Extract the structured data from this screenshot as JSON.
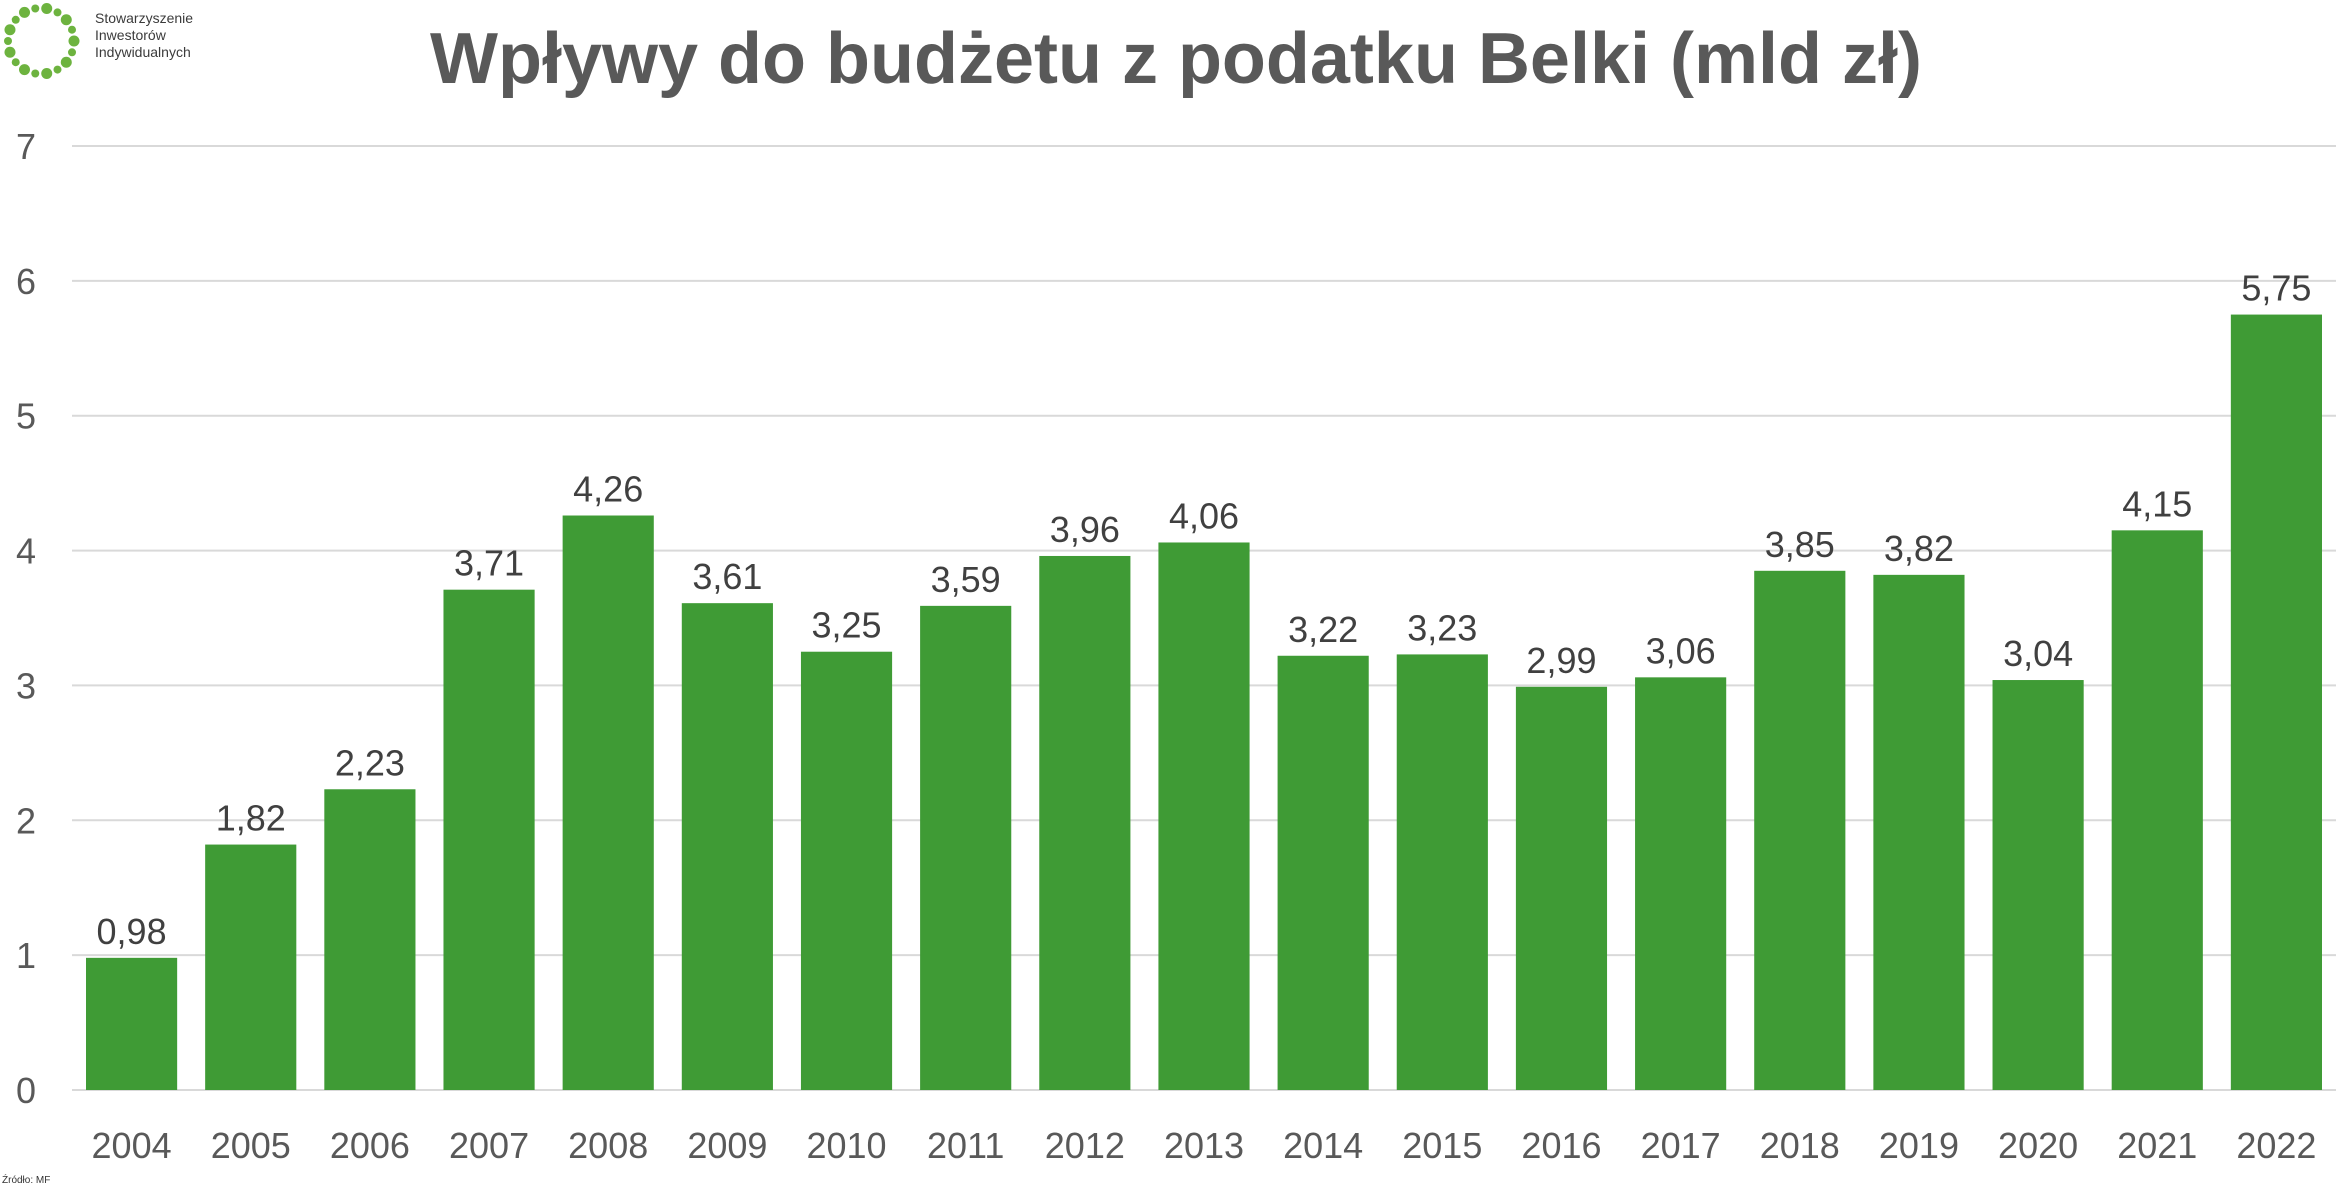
{
  "logo": {
    "lines": [
      "Stowarzyszenie",
      "Inwestorów",
      "Indywidualnych"
    ],
    "color": "#6db33f"
  },
  "source": "Źródło: MF",
  "colors": {
    "bar": "#3f9b35",
    "grid": "#d9d9d9",
    "axis_text": "#595959",
    "label_text": "#404040"
  },
  "chart_data": {
    "type": "bar",
    "title": "Wpływy do budżetu z podatku Belki (mld zł)",
    "xlabel": "",
    "ylabel": "",
    "ylim": [
      0,
      7
    ],
    "yticks": [
      "0",
      "1",
      "2",
      "3",
      "4",
      "5",
      "6",
      "7"
    ],
    "grid": true,
    "categories": [
      "2004",
      "2005",
      "2006",
      "2007",
      "2008",
      "2009",
      "2010",
      "2011",
      "2012",
      "2013",
      "2014",
      "2015",
      "2016",
      "2017",
      "2018",
      "2019",
      "2020",
      "2021",
      "2022"
    ],
    "values": [
      0.98,
      1.82,
      2.23,
      3.71,
      4.26,
      3.61,
      3.25,
      3.59,
      3.96,
      4.06,
      3.22,
      3.23,
      2.99,
      3.06,
      3.85,
      3.82,
      3.04,
      4.15,
      5.75
    ],
    "data_labels": [
      "0,98",
      "1,82",
      "2,23",
      "3,71",
      "4,26",
      "3,61",
      "3,25",
      "3,59",
      "3,96",
      "4,06",
      "3,22",
      "3,23",
      "2,99",
      "3,06",
      "3,85",
      "3,82",
      "3,04",
      "4,15",
      "5,75"
    ]
  }
}
